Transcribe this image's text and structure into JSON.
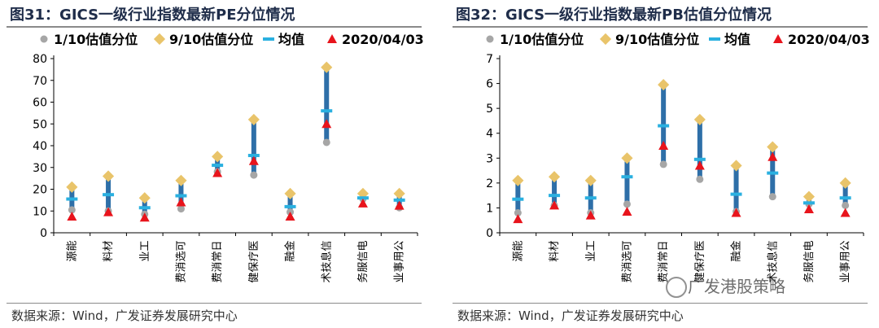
{
  "charts": [
    {
      "title": "图31：GICS一级行业指数最新PE分位情况",
      "source": "数据来源：Wind，广发证券发展研究中心",
      "chart_data": {
        "type": "scatter",
        "legend": [
          "1/10估值分位",
          "9/10估值分位",
          "均值",
          "2020/04/03"
        ],
        "legend_position": "top",
        "categories": [
          "能源",
          "材料",
          "工业",
          "可选消费",
          "日常消费",
          "医疗保健",
          "金融",
          "信息技术",
          "电信服务",
          "公用事业"
        ],
        "ylim": [
          0,
          80
        ],
        "yticks": [
          0,
          10,
          20,
          30,
          40,
          50,
          60,
          70,
          80
        ],
        "grid": false,
        "series": [
          {
            "name": "1/10估值分位",
            "values": [
              10.5,
              10,
              8.5,
              11,
              28,
              26.5,
              9.5,
              41.5,
              15.5,
              11.5
            ]
          },
          {
            "name": "9/10估值分位",
            "values": [
              21,
              26,
              16,
              24,
              35,
              52,
              18,
              76,
              18,
              18
            ]
          },
          {
            "name": "均值",
            "values": [
              15.5,
              17.5,
              11.5,
              17,
              31,
              35.5,
              12,
              56,
              16,
              15
            ]
          },
          {
            "name": "2020/04/03",
            "values": [
              7.5,
              9.5,
              7,
              14,
              27.5,
              33,
              7.5,
              50,
              13.5,
              12.5
            ]
          }
        ]
      }
    },
    {
      "title": "图32：GICS一级行业指数最新PB估值分位情况",
      "source": "数据来源：Wind，广发证券发展研究中心",
      "chart_data": {
        "type": "scatter",
        "legend": [
          "1/10估值分位",
          "9/10估值分位",
          "均值",
          "2020/04/03"
        ],
        "legend_position": "top",
        "categories": [
          "能源",
          "材料",
          "工业",
          "可选消费",
          "日常消费",
          "医疗保健",
          "金融",
          "信息技术",
          "电信服务",
          "公用事业"
        ],
        "ylim": [
          0,
          7
        ],
        "yticks": [
          0,
          1,
          2,
          3,
          4,
          5,
          6,
          7
        ],
        "grid": false,
        "series": [
          {
            "name": "1/10估值分位",
            "values": [
              0.8,
              1.1,
              0.8,
              1.15,
              2.75,
              2.15,
              0.85,
              1.45,
              1.15,
              1.1
            ]
          },
          {
            "name": "9/10估值分位",
            "values": [
              2.1,
              2.25,
              2.1,
              3.0,
              5.95,
              4.55,
              2.7,
              3.45,
              1.45,
              2.0
            ]
          },
          {
            "name": "均值",
            "values": [
              1.35,
              1.5,
              1.4,
              2.25,
              4.3,
              2.95,
              1.55,
              2.4,
              1.2,
              1.4
            ]
          },
          {
            "name": "2020/04/03",
            "values": [
              0.55,
              1.1,
              0.7,
              0.85,
              3.5,
              2.7,
              0.8,
              3.05,
              0.95,
              0.8
            ]
          }
        ]
      }
    }
  ],
  "colors": {
    "range_bar": "#2e6fa8",
    "low_marker": "#a6a6a6",
    "high_marker": "#e9c46a",
    "mean_marker": "#2ab0e0",
    "current_marker": "#e8141c",
    "axis": "#000000",
    "title_text": "#1f2d4a"
  },
  "watermark": "广发港股策略"
}
